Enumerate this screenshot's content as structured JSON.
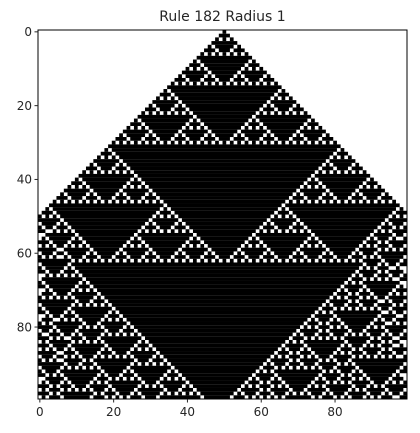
{
  "chart_data": {
    "type": "heatmap",
    "title": "Rule 182 Radius 1",
    "rule": 182,
    "radius": 1,
    "width": 100,
    "generations": 100,
    "initial_live_cell": 50,
    "colormap": {
      "live": "#000000",
      "dead": "#ffffff"
    },
    "xlim": [
      -0.5,
      99.5
    ],
    "ylim": [
      99.5,
      -0.5
    ],
    "x_ticks": [
      0,
      20,
      40,
      60,
      80
    ],
    "y_ticks": [
      0,
      20,
      40,
      60,
      80
    ],
    "x_tick_labels": [
      "0",
      "20",
      "40",
      "60",
      "80"
    ],
    "y_tick_labels": [
      "0",
      "20",
      "40",
      "60",
      "80"
    ],
    "xlabel": "",
    "ylabel": "",
    "grid": false
  }
}
